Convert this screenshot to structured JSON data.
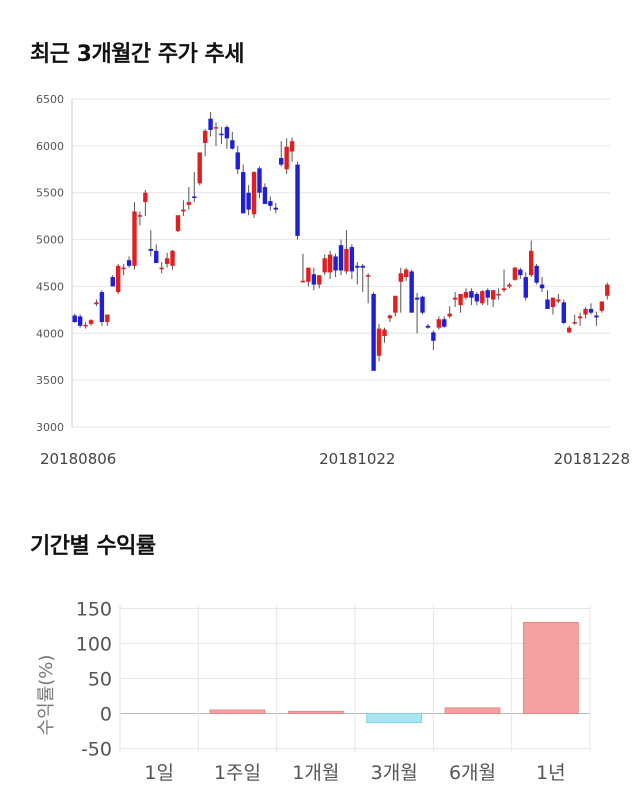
{
  "sections": {
    "price_title": "최근 3개월간 주가 추세",
    "returns_title": "기간별 수익률"
  },
  "colors": {
    "up": "#e02020",
    "down": "#1f1fd6",
    "grid": "#e6e6e6",
    "axis": "#cccccc",
    "bar_pos": "#f6a1a1",
    "bar_pos_stroke": "#e88a8a",
    "bar_neg": "#a9e6f2",
    "bar_neg_stroke": "#7fd3e6"
  },
  "chart_data": [
    {
      "type": "candlestick",
      "title": "최근 3개월간 주가 추세",
      "ylim": [
        3000,
        6500
      ],
      "yticks": [
        3000,
        3500,
        4000,
        4500,
        5000,
        5500,
        6000,
        6500
      ],
      "ytick_labels": [
        "3000",
        "3500",
        "4000",
        "4500",
        "5000",
        "5500",
        "6000",
        "6500"
      ],
      "xtick_labels": [
        "20180806",
        "20181022",
        "20181228"
      ],
      "xtick_index": [
        0,
        52,
        98
      ],
      "grid": true,
      "candles": [
        {
          "o": 4190,
          "h": 4210,
          "l": 4110,
          "c": 4120
        },
        {
          "o": 4180,
          "h": 4200,
          "l": 4060,
          "c": 4080
        },
        {
          "o": 4080,
          "h": 4120,
          "l": 4050,
          "c": 4090
        },
        {
          "o": 4100,
          "h": 4150,
          "l": 4080,
          "c": 4140
        },
        {
          "o": 4310,
          "h": 4360,
          "l": 4290,
          "c": 4330
        },
        {
          "o": 4440,
          "h": 4460,
          "l": 4080,
          "c": 4120
        },
        {
          "o": 4120,
          "h": 4200,
          "l": 4080,
          "c": 4200
        },
        {
          "o": 4600,
          "h": 4620,
          "l": 4500,
          "c": 4500
        },
        {
          "o": 4440,
          "h": 4740,
          "l": 4420,
          "c": 4720
        },
        {
          "o": 4700,
          "h": 4740,
          "l": 4620,
          "c": 4700
        },
        {
          "o": 4780,
          "h": 4820,
          "l": 4700,
          "c": 4720
        },
        {
          "o": 4720,
          "h": 5400,
          "l": 4680,
          "c": 5300
        },
        {
          "o": 5250,
          "h": 5300,
          "l": 5150,
          "c": 5260
        },
        {
          "o": 5400,
          "h": 5530,
          "l": 5250,
          "c": 5500
        },
        {
          "o": 4900,
          "h": 5100,
          "l": 4820,
          "c": 4880
        },
        {
          "o": 4880,
          "h": 4950,
          "l": 4750,
          "c": 4750
        },
        {
          "o": 4700,
          "h": 4760,
          "l": 4640,
          "c": 4700
        },
        {
          "o": 4740,
          "h": 4860,
          "l": 4700,
          "c": 4800
        },
        {
          "o": 4720,
          "h": 4890,
          "l": 4680,
          "c": 4880
        },
        {
          "o": 5090,
          "h": 5240,
          "l": 5080,
          "c": 5260
        },
        {
          "o": 5300,
          "h": 5420,
          "l": 5250,
          "c": 5320
        },
        {
          "o": 5370,
          "h": 5560,
          "l": 5320,
          "c": 5400
        },
        {
          "o": 5460,
          "h": 5720,
          "l": 5400,
          "c": 5450
        },
        {
          "o": 5600,
          "h": 5930,
          "l": 5580,
          "c": 5930
        },
        {
          "o": 6030,
          "h": 6180,
          "l": 5890,
          "c": 6160
        },
        {
          "o": 6290,
          "h": 6360,
          "l": 6100,
          "c": 6170
        },
        {
          "o": 6200,
          "h": 6250,
          "l": 6000,
          "c": 6200
        },
        {
          "o": 6130,
          "h": 6200,
          "l": 6020,
          "c": 6120
        },
        {
          "o": 6200,
          "h": 6220,
          "l": 5970,
          "c": 6080
        },
        {
          "o": 6060,
          "h": 6150,
          "l": 5960,
          "c": 5970
        },
        {
          "o": 5930,
          "h": 6000,
          "l": 5700,
          "c": 5750
        },
        {
          "o": 5720,
          "h": 5800,
          "l": 5280,
          "c": 5280
        },
        {
          "o": 5500,
          "h": 5580,
          "l": 5260,
          "c": 5320
        },
        {
          "o": 5270,
          "h": 5730,
          "l": 5230,
          "c": 5720
        },
        {
          "o": 5760,
          "h": 5780,
          "l": 5440,
          "c": 5500
        },
        {
          "o": 5560,
          "h": 5600,
          "l": 5380,
          "c": 5380
        },
        {
          "o": 5410,
          "h": 5460,
          "l": 5310,
          "c": 5360
        },
        {
          "o": 5340,
          "h": 5390,
          "l": 5280,
          "c": 5320
        },
        {
          "o": 5870,
          "h": 6050,
          "l": 5780,
          "c": 5800
        },
        {
          "o": 5750,
          "h": 6080,
          "l": 5700,
          "c": 5990
        },
        {
          "o": 5940,
          "h": 6090,
          "l": 5830,
          "c": 6050
        },
        {
          "o": 5800,
          "h": 5830,
          "l": 5000,
          "c": 5040
        },
        {
          "o": 4560,
          "h": 4850,
          "l": 4540,
          "c": 4560
        },
        {
          "o": 4550,
          "h": 4670,
          "l": 4500,
          "c": 4700
        },
        {
          "o": 4630,
          "h": 4700,
          "l": 4460,
          "c": 4520
        },
        {
          "o": 4520,
          "h": 4600,
          "l": 4480,
          "c": 4620
        },
        {
          "o": 4650,
          "h": 4840,
          "l": 4620,
          "c": 4800
        },
        {
          "o": 4650,
          "h": 4880,
          "l": 4580,
          "c": 4840
        },
        {
          "o": 4820,
          "h": 4850,
          "l": 4600,
          "c": 4670
        },
        {
          "o": 4940,
          "h": 5000,
          "l": 4620,
          "c": 4670
        },
        {
          "o": 4660,
          "h": 5100,
          "l": 4630,
          "c": 4900
        },
        {
          "o": 4920,
          "h": 4950,
          "l": 4580,
          "c": 4660
        },
        {
          "o": 4720,
          "h": 4760,
          "l": 4520,
          "c": 4700
        },
        {
          "o": 4720,
          "h": 4740,
          "l": 4440,
          "c": 4700
        },
        {
          "o": 4620,
          "h": 4640,
          "l": 4320,
          "c": 4620
        },
        {
          "o": 4420,
          "h": 4440,
          "l": 3600,
          "c": 3600
        },
        {
          "o": 3760,
          "h": 4100,
          "l": 3700,
          "c": 4050
        },
        {
          "o": 3970,
          "h": 4060,
          "l": 3900,
          "c": 4040
        },
        {
          "o": 4160,
          "h": 4200,
          "l": 4120,
          "c": 4190
        },
        {
          "o": 4220,
          "h": 4400,
          "l": 4180,
          "c": 4400
        },
        {
          "o": 4550,
          "h": 4700,
          "l": 4220,
          "c": 4640
        },
        {
          "o": 4600,
          "h": 4700,
          "l": 4560,
          "c": 4680
        },
        {
          "o": 4660,
          "h": 4680,
          "l": 4240,
          "c": 4220
        },
        {
          "o": 4380,
          "h": 4430,
          "l": 4000,
          "c": 4360
        },
        {
          "o": 4390,
          "h": 4400,
          "l": 4200,
          "c": 4220
        },
        {
          "o": 4080,
          "h": 4100,
          "l": 4050,
          "c": 4060
        },
        {
          "o": 4010,
          "h": 4030,
          "l": 3820,
          "c": 3920
        },
        {
          "o": 4060,
          "h": 4180,
          "l": 4040,
          "c": 4150
        },
        {
          "o": 4150,
          "h": 4180,
          "l": 4060,
          "c": 4070
        },
        {
          "o": 4180,
          "h": 4290,
          "l": 4160,
          "c": 4210
        },
        {
          "o": 4360,
          "h": 4440,
          "l": 4280,
          "c": 4380
        },
        {
          "o": 4300,
          "h": 4420,
          "l": 4220,
          "c": 4420
        },
        {
          "o": 4380,
          "h": 4480,
          "l": 4360,
          "c": 4440
        },
        {
          "o": 4450,
          "h": 4480,
          "l": 4300,
          "c": 4380
        },
        {
          "o": 4420,
          "h": 4440,
          "l": 4300,
          "c": 4340
        },
        {
          "o": 4320,
          "h": 4460,
          "l": 4300,
          "c": 4450
        },
        {
          "o": 4460,
          "h": 4480,
          "l": 4300,
          "c": 4380
        },
        {
          "o": 4360,
          "h": 4460,
          "l": 4280,
          "c": 4460
        },
        {
          "o": 4420,
          "h": 4480,
          "l": 4360,
          "c": 4420
        },
        {
          "o": 4460,
          "h": 4680,
          "l": 4440,
          "c": 4480
        },
        {
          "o": 4500,
          "h": 4540,
          "l": 4480,
          "c": 4520
        },
        {
          "o": 4570,
          "h": 4710,
          "l": 4560,
          "c": 4700
        },
        {
          "o": 4680,
          "h": 4700,
          "l": 4580,
          "c": 4620
        },
        {
          "o": 4600,
          "h": 4650,
          "l": 4350,
          "c": 4380
        },
        {
          "o": 4620,
          "h": 4990,
          "l": 4600,
          "c": 4880
        },
        {
          "o": 4720,
          "h": 4740,
          "l": 4520,
          "c": 4540
        },
        {
          "o": 4520,
          "h": 4600,
          "l": 4440,
          "c": 4480
        },
        {
          "o": 4360,
          "h": 4460,
          "l": 4260,
          "c": 4260
        },
        {
          "o": 4280,
          "h": 4380,
          "l": 4200,
          "c": 4380
        },
        {
          "o": 4340,
          "h": 4420,
          "l": 4320,
          "c": 4360
        },
        {
          "o": 4330,
          "h": 4360,
          "l": 4100,
          "c": 4110
        },
        {
          "o": 4010,
          "h": 4080,
          "l": 4000,
          "c": 4060
        },
        {
          "o": 4120,
          "h": 4200,
          "l": 4090,
          "c": 4120
        },
        {
          "o": 4160,
          "h": 4220,
          "l": 4080,
          "c": 4180
        },
        {
          "o": 4200,
          "h": 4280,
          "l": 4160,
          "c": 4260
        },
        {
          "o": 4260,
          "h": 4320,
          "l": 4200,
          "c": 4220
        },
        {
          "o": 4190,
          "h": 4230,
          "l": 4080,
          "c": 4170
        },
        {
          "o": 4240,
          "h": 4340,
          "l": 4220,
          "c": 4340
        },
        {
          "o": 4400,
          "h": 4540,
          "l": 4360,
          "c": 4520
        }
      ]
    },
    {
      "type": "bar",
      "title": "기간별 수익률",
      "categories": [
        "1일",
        "1주일",
        "1개월",
        "3개월",
        "6개월",
        "1년"
      ],
      "values": [
        0,
        5,
        3,
        -13,
        8,
        130
      ],
      "ylabel": "수익률(%)",
      "ylim": [
        -55,
        155
      ],
      "yticks": [
        -50,
        0,
        50,
        100,
        150
      ],
      "ytick_labels": [
        "-50",
        "0",
        "50",
        "100",
        "150"
      ],
      "grid": true
    }
  ]
}
